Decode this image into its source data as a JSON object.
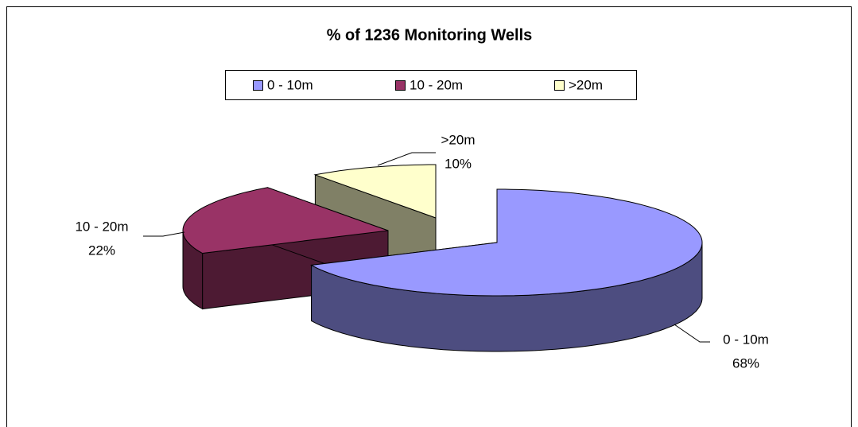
{
  "chart_data": {
    "type": "pie",
    "title": "% of 1236 Monitoring Wells",
    "categories": [
      "0 - 10m",
      "10 - 20m",
      ">20m"
    ],
    "values": [
      68,
      22,
      10
    ],
    "value_labels": [
      "68%",
      "22%",
      "10%"
    ],
    "colors": [
      "#9999ff",
      "#993366",
      "#ffffcc"
    ],
    "legend": "top"
  }
}
